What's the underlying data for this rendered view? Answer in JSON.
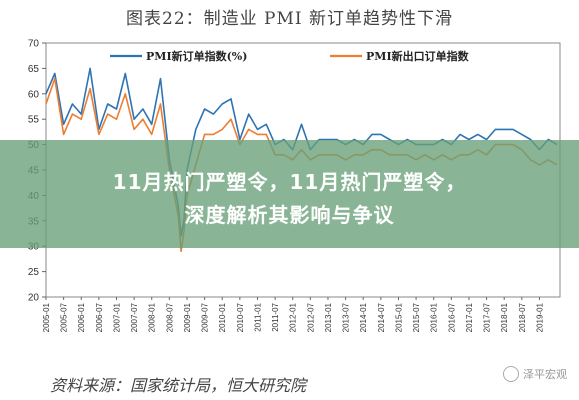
{
  "chart_data": {
    "type": "line",
    "title": "图表22：制造业 PMI 新订单趋势性下滑",
    "ylim": [
      20,
      70
    ],
    "yticks": [
      20,
      25,
      30,
      35,
      40,
      45,
      50,
      55,
      60,
      65,
      70
    ],
    "x_ticks": [
      "2005-01",
      "2005-07",
      "2006-01",
      "2006-07",
      "2007-01",
      "2007-07",
      "2008-01",
      "2008-07",
      "2009-01",
      "2009-07",
      "2010-01",
      "2010-07",
      "2011-01",
      "2011-07",
      "2012-01",
      "2012-07",
      "2013-01",
      "2013-07",
      "2014-01",
      "2014-07",
      "2015-01",
      "2015-07",
      "2016-01",
      "2016-07",
      "2017-01",
      "2017-07",
      "2018-01",
      "2018-07",
      "2019-01"
    ],
    "legend_position": "top",
    "grid": false,
    "series": [
      {
        "name": "PMI新订单指数(%)",
        "color": "#2e74b5",
        "x": [
          "2005-01",
          "2005-04",
          "2005-07",
          "2005-10",
          "2006-01",
          "2006-04",
          "2006-07",
          "2006-10",
          "2007-01",
          "2007-04",
          "2007-07",
          "2007-10",
          "2008-01",
          "2008-04",
          "2008-07",
          "2008-10",
          "2008-11",
          "2008-12",
          "2009-01",
          "2009-04",
          "2009-07",
          "2009-10",
          "2010-01",
          "2010-04",
          "2010-07",
          "2010-10",
          "2011-01",
          "2011-04",
          "2011-07",
          "2011-10",
          "2012-01",
          "2012-04",
          "2012-07",
          "2012-10",
          "2013-01",
          "2013-04",
          "2013-07",
          "2013-10",
          "2014-01",
          "2014-04",
          "2014-07",
          "2014-10",
          "2015-01",
          "2015-04",
          "2015-07",
          "2015-10",
          "2016-01",
          "2016-04",
          "2016-07",
          "2016-10",
          "2017-01",
          "2017-04",
          "2017-07",
          "2017-10",
          "2018-01",
          "2018-04",
          "2018-07",
          "2018-10",
          "2019-01",
          "2019-04",
          "2019-07"
        ],
        "values": [
          60,
          64,
          54,
          58,
          56,
          65,
          53,
          58,
          57,
          64,
          55,
          57,
          54,
          63,
          47,
          38,
          32,
          35,
          45,
          53,
          57,
          56,
          58,
          59,
          51,
          56,
          53,
          54,
          50,
          51,
          49,
          54,
          49,
          51,
          51,
          51,
          50,
          51,
          50,
          52,
          52,
          51,
          50,
          51,
          50,
          50,
          50,
          51,
          50,
          52,
          51,
          52,
          51,
          53,
          53,
          53,
          52,
          51,
          49,
          51,
          50
        ]
      },
      {
        "name": "PMI新出口订单指数",
        "color": "#ed7d31",
        "x": [
          "2005-01",
          "2005-04",
          "2005-07",
          "2005-10",
          "2006-01",
          "2006-04",
          "2006-07",
          "2006-10",
          "2007-01",
          "2007-04",
          "2007-07",
          "2007-10",
          "2008-01",
          "2008-04",
          "2008-07",
          "2008-10",
          "2008-11",
          "2008-12",
          "2009-01",
          "2009-04",
          "2009-07",
          "2009-10",
          "2010-01",
          "2010-04",
          "2010-07",
          "2010-10",
          "2011-01",
          "2011-04",
          "2011-07",
          "2011-10",
          "2012-01",
          "2012-04",
          "2012-07",
          "2012-10",
          "2013-01",
          "2013-04",
          "2013-07",
          "2013-10",
          "2014-01",
          "2014-04",
          "2014-07",
          "2014-10",
          "2015-01",
          "2015-04",
          "2015-07",
          "2015-10",
          "2016-01",
          "2016-04",
          "2016-07",
          "2016-10",
          "2017-01",
          "2017-04",
          "2017-07",
          "2017-10",
          "2018-01",
          "2018-04",
          "2018-07",
          "2018-10",
          "2019-01",
          "2019-04",
          "2019-07"
        ],
        "values": [
          58,
          63,
          52,
          56,
          55,
          61,
          52,
          56,
          55,
          60,
          53,
          55,
          52,
          58,
          45,
          36,
          29,
          33,
          40,
          46,
          52,
          52,
          53,
          55,
          50,
          53,
          52,
          52,
          48,
          48,
          47,
          49,
          47,
          48,
          48,
          48,
          47,
          48,
          48,
          49,
          49,
          48,
          48,
          48,
          47,
          48,
          47,
          48,
          47,
          48,
          48,
          49,
          48,
          50,
          50,
          50,
          49,
          47,
          46,
          47,
          46
        ]
      }
    ]
  },
  "overlay": {
    "line1": "11月热门严塑令，11月热门严塑令，",
    "line2": "深度解析其影响与争议"
  },
  "source": "资料来源：国家统计局，恒大研究院",
  "watermark": "泽平宏观"
}
